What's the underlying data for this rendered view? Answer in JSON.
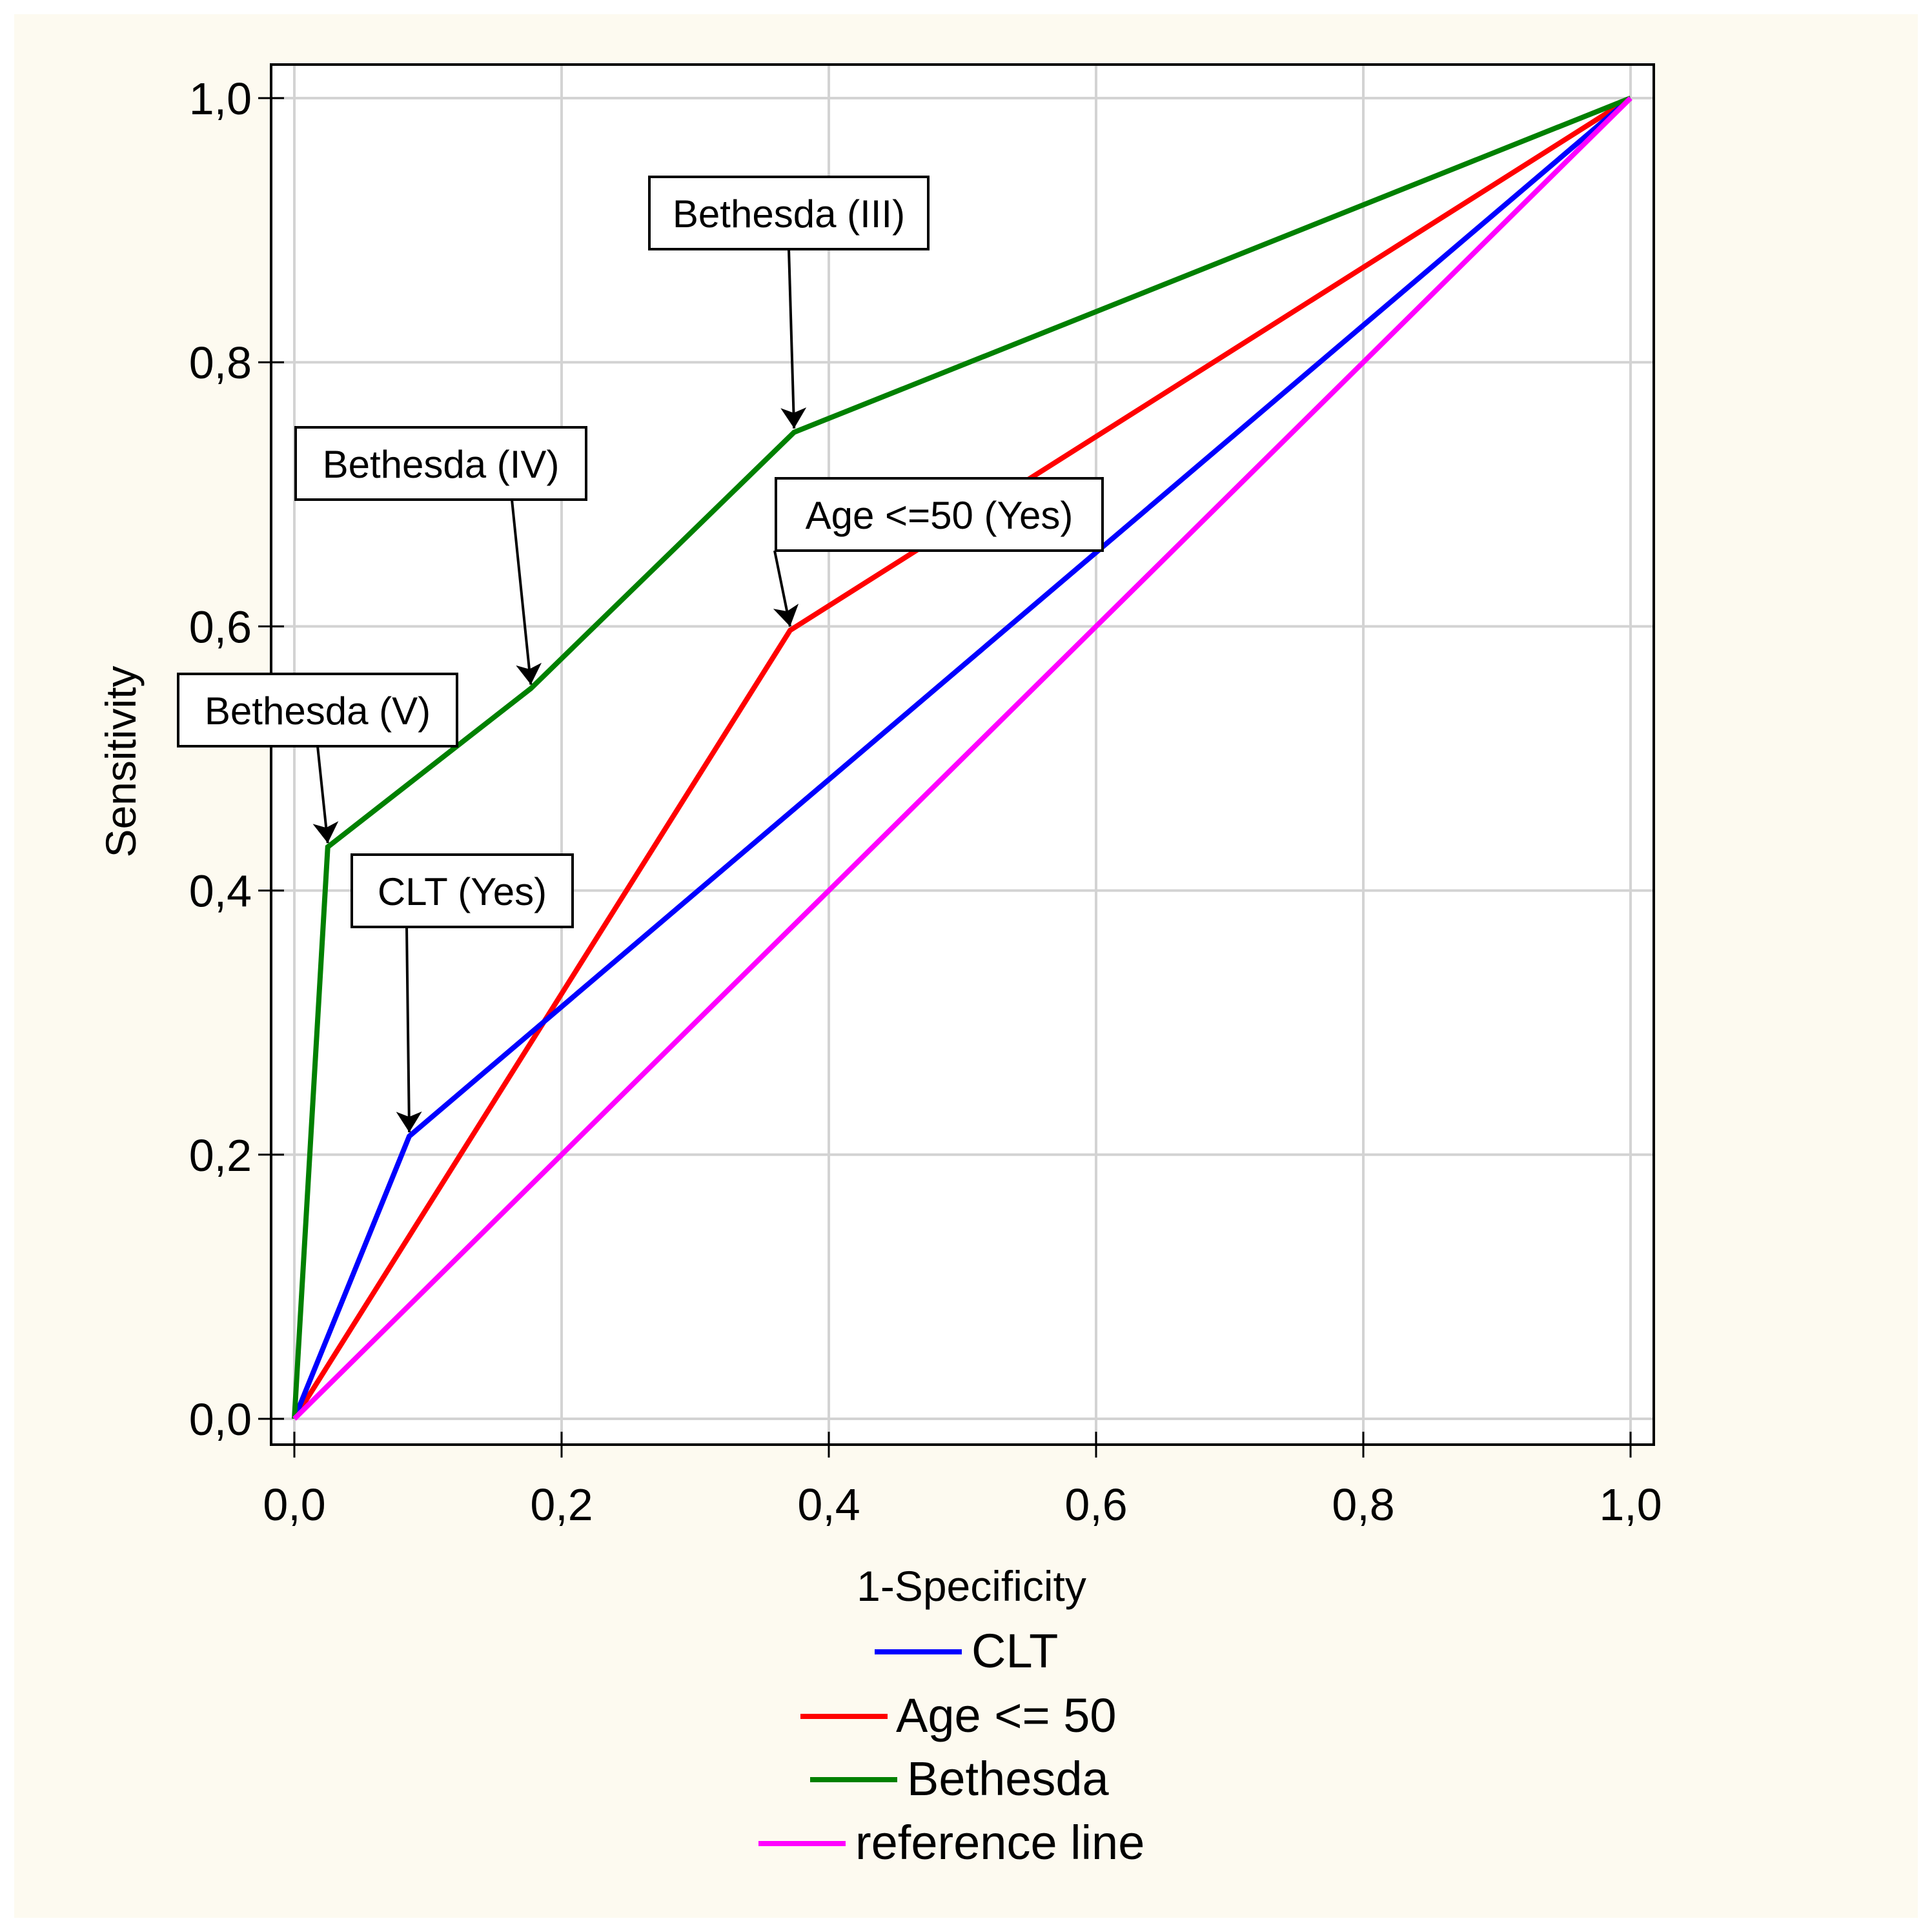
{
  "chart_data": {
    "type": "line",
    "title": "",
    "xlabel": "1-Specificity",
    "ylabel": "Sensitivity",
    "xlim": [
      0,
      1
    ],
    "ylim": [
      0,
      1
    ],
    "xticks": [
      0,
      0.2,
      0.4,
      0.6,
      0.8,
      1.0
    ],
    "yticks": [
      0,
      0.2,
      0.4,
      0.6,
      0.8,
      1.0
    ],
    "xtick_labels": [
      "0,0",
      "0,2",
      "0,4",
      "0,6",
      "0,8",
      "1,0"
    ],
    "ytick_labels": [
      "0,0",
      "0,2",
      "0,4",
      "0,6",
      "0,8",
      "1,0"
    ],
    "grid": true,
    "legend_position": "bottom-center",
    "series": [
      {
        "name": "CLT",
        "color": "#0000ff",
        "x": [
          0,
          0.086,
          1.0
        ],
        "y": [
          0,
          0.214,
          1.0
        ]
      },
      {
        "name": "Age <= 50",
        "color": "#ff0000",
        "x": [
          0,
          0.371,
          1.0
        ],
        "y": [
          0,
          0.597,
          1.0
        ]
      },
      {
        "name": "Bethesda",
        "color": "#008000",
        "x": [
          0,
          0.025,
          0.177,
          0.374,
          1.0
        ],
        "y": [
          0,
          0.433,
          0.553,
          0.747,
          1.0
        ]
      },
      {
        "name": "reference line",
        "color": "#ff00ff",
        "x": [
          0,
          1.0
        ],
        "y": [
          0,
          1.0
        ]
      }
    ],
    "annotations": [
      {
        "text": "Bethesda (III)",
        "target_x": 0.374,
        "target_y": 0.747
      },
      {
        "text": "Bethesda (IV)",
        "target_x": 0.177,
        "target_y": 0.553
      },
      {
        "text": "Age <=50 (Yes)",
        "target_x": 0.371,
        "target_y": 0.597
      },
      {
        "text": "Bethesda (V)",
        "target_x": 0.025,
        "target_y": 0.433
      },
      {
        "text": "CLT (Yes)",
        "target_x": 0.086,
        "target_y": 0.214
      }
    ]
  }
}
